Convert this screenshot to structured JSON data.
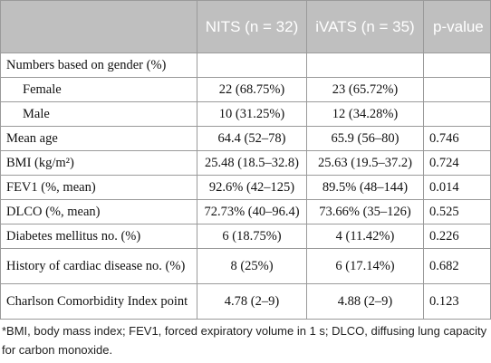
{
  "header": {
    "col0": "",
    "col1": "NITS (n = 32)",
    "col2": "iVATS (n = 35)",
    "col3": "p-value"
  },
  "rows": [
    {
      "label": "Numbers based on gender (%)",
      "nits": "",
      "ivats": "",
      "p": "",
      "indent": false,
      "tall": false
    },
    {
      "label": "Female",
      "nits": "22 (68.75%)",
      "ivats": "23 (65.72%)",
      "p": "",
      "indent": true,
      "tall": false
    },
    {
      "label": "Male",
      "nits": "10 (31.25%)",
      "ivats": "12 (34.28%)",
      "p": "",
      "indent": true,
      "tall": false
    },
    {
      "label": "Mean age",
      "nits": "64.4 (52–78)",
      "ivats": "65.9 (56–80)",
      "p": "0.746",
      "indent": false,
      "tall": false
    },
    {
      "label": "BMI (kg/m²)",
      "nits": "25.48 (18.5–32.8)",
      "ivats": "25.63 (19.5–37.2)",
      "p": "0.724",
      "indent": false,
      "tall": false
    },
    {
      "label": "FEV1 (%, mean)",
      "nits": "92.6% (42–125)",
      "ivats": "89.5% (48–144)",
      "p": "0.014",
      "indent": false,
      "tall": false
    },
    {
      "label": "DLCO (%, mean)",
      "nits": "72.73% (40–96.4)",
      "ivats": "73.66% (35–126)",
      "p": "0.525",
      "indent": false,
      "tall": false
    },
    {
      "label": "Diabetes mellitus no. (%)",
      "nits": "6 (18.75%)",
      "ivats": "4 (11.42%)",
      "p": "0.226",
      "indent": false,
      "tall": false
    },
    {
      "label": "History of cardiac disease no. (%)",
      "nits": "8 (25%)",
      "ivats": "6 (17.14%)",
      "p": "0.682",
      "indent": false,
      "tall": true
    },
    {
      "label": "Charlson Comorbidity Index point",
      "nits": "4.78 (2–9)",
      "ivats": "4.88 (2–9)",
      "p": "0.123",
      "indent": false,
      "tall": true
    }
  ],
  "footnote": "*BMI, body mass index; FEV1, forced expiratory volume in 1 s; DLCO, diffusing lung capacity for carbon monoxide.",
  "colors": {
    "header_bg": "#bfbfbf",
    "header_text": "#ffffff",
    "border": "#9a9a9a"
  }
}
